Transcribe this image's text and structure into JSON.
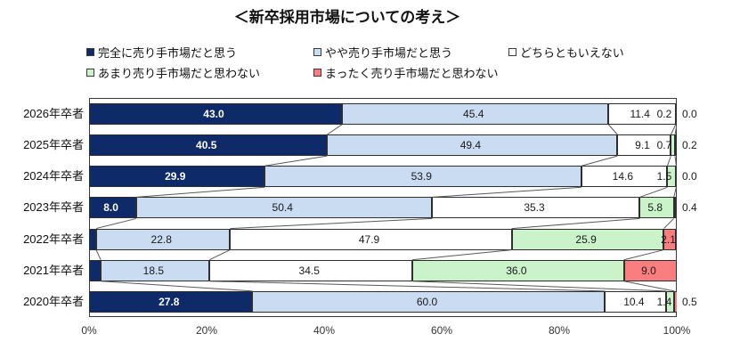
{
  "chart_data": {
    "type": "bar",
    "subtype": "horizontal-stacked-percentage",
    "title": "＜新卒採用市場についての考え＞",
    "categories": [
      "2026年卒者",
      "2025年卒者",
      "2024年卒者",
      "2023年卒者",
      "2022年卒者",
      "2021年卒者",
      "2020年卒者"
    ],
    "series": [
      {
        "name": "完全に売り手市場だと思う",
        "color": "#0e2a68",
        "values": [
          43.0,
          40.5,
          29.9,
          8.0,
          1.2,
          2.0,
          27.8
        ]
      },
      {
        "name": "やや売り手市場だと思う",
        "color": "#c9dcf2",
        "values": [
          45.4,
          49.4,
          53.9,
          50.4,
          22.8,
          18.5,
          60.0
        ]
      },
      {
        "name": "どちらともいえない",
        "color": "#ffffff",
        "values": [
          11.4,
          9.1,
          14.6,
          35.3,
          47.9,
          34.5,
          10.4
        ]
      },
      {
        "name": "あまり売り手市場だと思わない",
        "color": "#cbf3ca",
        "values": [
          0.2,
          0.7,
          1.5,
          5.8,
          25.9,
          36.0,
          1.4
        ]
      },
      {
        "name": "まったく売り手市場だと思わない",
        "color": "#fa7e80",
        "values": [
          0.0,
          0.2,
          0.0,
          0.4,
          2.1,
          9.0,
          0.5
        ]
      }
    ],
    "x_ticks": [
      "0%",
      "20%",
      "40%",
      "60%",
      "80%",
      "100%"
    ],
    "xlim": [
      0,
      100
    ],
    "legend_position": "top",
    "value_label_decimals": 1,
    "grid": false
  }
}
